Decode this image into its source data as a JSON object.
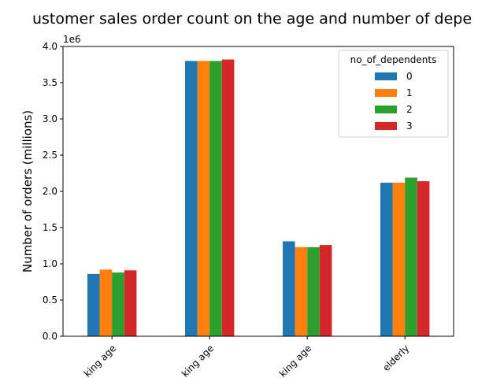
{
  "chart_data": {
    "type": "bar",
    "title": "Customer sales order count on the age and number of dependents",
    "title_visible": "ustomer sales order count on the age and number of depe",
    "ylabel": "Number of orders (millions)",
    "xlabel": "",
    "y_multiplier_label": "1e6",
    "ylim": [
      0,
      4000000
    ],
    "yticks": [
      0,
      500000,
      1000000,
      1500000,
      2000000,
      2500000,
      3000000,
      3500000,
      4000000
    ],
    "ytick_labels": [
      "0.0",
      "0.5",
      "1.0",
      "1.5",
      "2.0",
      "2.5",
      "3.0",
      "3.5",
      "4.0"
    ],
    "categories": [
      "king age",
      "king age",
      "king age",
      "elderly"
    ],
    "legend_title": "no_of_dependents",
    "legend_position": "top-right",
    "grid": false,
    "series": [
      {
        "name": "0",
        "color": "#1f77b4",
        "values": [
          860000,
          3800000,
          1310000,
          2120000
        ]
      },
      {
        "name": "1",
        "color": "#ff7f0e",
        "values": [
          920000,
          3800000,
          1230000,
          2120000
        ]
      },
      {
        "name": "2",
        "color": "#2ca02c",
        "values": [
          880000,
          3800000,
          1230000,
          2190000
        ]
      },
      {
        "name": "3",
        "color": "#d62728",
        "values": [
          910000,
          3820000,
          1260000,
          2140000
        ]
      }
    ]
  }
}
